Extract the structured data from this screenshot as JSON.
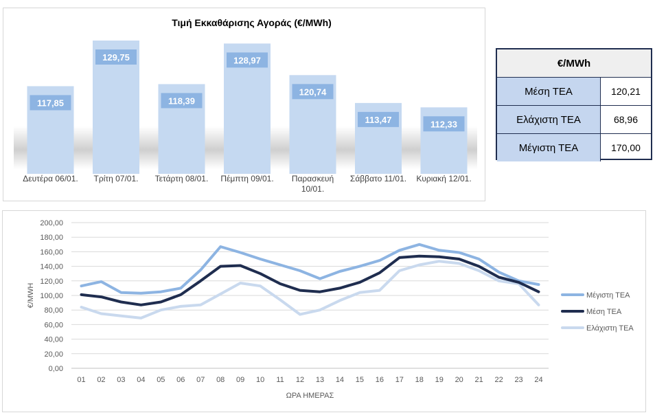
{
  "bar_chart_title": "Τιμή Εκκαθάρισης Αγοράς (€/MWh)",
  "table": {
    "header": "€/MWh",
    "rows": [
      {
        "label": "Μέση ΤΕΑ",
        "value": "120,21"
      },
      {
        "label": "Ελάχιστη ΤΕΑ",
        "value": "68,96"
      },
      {
        "label": "Μέγιστη ΤΕΑ",
        "value": "170,00"
      }
    ]
  },
  "chart_data": [
    {
      "type": "bar",
      "title": "Τιμή Εκκαθάρισης Αγοράς (€/MWh)",
      "categories": [
        "Δευτέρα 06/01.",
        "Τρίτη 07/01.",
        "Τετάρτη 08/01.",
        "Πέμπτη 09/01.",
        "Παρασκευή 10/01.",
        "Σάββατο 11/01.",
        "Κυριακή 12/01."
      ],
      "values": [
        117.85,
        129.75,
        118.39,
        128.97,
        120.74,
        113.47,
        112.33
      ],
      "data_labels": [
        "117,85",
        "129,75",
        "118,39",
        "128,97",
        "120,74",
        "113,47",
        "112,33"
      ],
      "bar_color": "#c5d9f1",
      "label_box_color": "#8db4e2",
      "grid": false
    },
    {
      "type": "line",
      "xlabel": "ΩΡΑ ΗΜΕΡΑΣ",
      "ylabel": "€/MWH",
      "x": [
        "01",
        "02",
        "03",
        "04",
        "05",
        "06",
        "07",
        "08",
        "09",
        "10",
        "11",
        "12",
        "13",
        "14",
        "15",
        "16",
        "17",
        "18",
        "19",
        "20",
        "21",
        "22",
        "23",
        "24"
      ],
      "ylim": [
        0,
        200
      ],
      "yticks": [
        "0,00",
        "20,00",
        "40,00",
        "60,00",
        "80,00",
        "100,00",
        "120,00",
        "140,00",
        "160,00",
        "180,00",
        "200,00"
      ],
      "legend_position": "right",
      "grid": true,
      "series": [
        {
          "name": "Μέγιστη ΤΕΑ",
          "color": "#8db4e2",
          "values": [
            113,
            119,
            104,
            103,
            105,
            110,
            135,
            167,
            159,
            150,
            142,
            134,
            123,
            133,
            140,
            148,
            162,
            170,
            162,
            159,
            150,
            132,
            120,
            115
          ]
        },
        {
          "name": "Μέση ΤΕΑ",
          "color": "#1f2d4f",
          "values": [
            101,
            98,
            91,
            87,
            91,
            101,
            120,
            140,
            141,
            130,
            116,
            107,
            105,
            110,
            118,
            131,
            152,
            154,
            153,
            150,
            140,
            125,
            118,
            105
          ]
        },
        {
          "name": "Ελάχιστη ΤΕΑ",
          "color": "#c9d9ee",
          "values": [
            84,
            75,
            72,
            69,
            80,
            85,
            87,
            102,
            117,
            113,
            94,
            74,
            80,
            93,
            104,
            107,
            134,
            142,
            147,
            144,
            134,
            120,
            116,
            87
          ]
        }
      ]
    }
  ]
}
